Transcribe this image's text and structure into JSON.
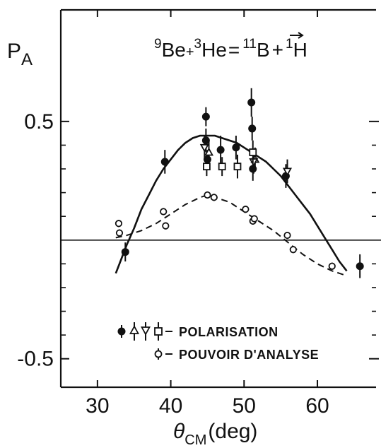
{
  "chart_data": {
    "type": "scatter",
    "title": "",
    "reaction": {
      "target_sup": "9",
      "target": "Be",
      "projectile_sup": "3",
      "projectile": "He",
      "product_sup": "11",
      "product": "B",
      "ejectile_sup": "1",
      "ejectile": "H",
      "plus1": "+",
      "equals": "=",
      "plus2": "+"
    },
    "ylabel": {
      "main": "P",
      "sub": "A"
    },
    "xlabel": {
      "theta": "θ",
      "sub": "CM",
      "unit": "(deg)"
    },
    "xlim": [
      25,
      68
    ],
    "ylim": [
      -0.62,
      0.97
    ],
    "x_ticks": [
      30,
      40,
      50,
      60
    ],
    "x_tick_labels": [
      "30",
      "40",
      "50",
      "60"
    ],
    "y_ticks": [
      -0.5,
      0.5
    ],
    "y_tick_labels": [
      "-0.5",
      "0.5"
    ],
    "y_minor_ticks": [
      -0.4,
      -0.3,
      -0.2,
      -0.1,
      0.1,
      0.2,
      0.3,
      0.4
    ],
    "grid": false,
    "zero_line": true,
    "legend": {
      "position": "bottom-left",
      "polarisation_label": "POLARISATION",
      "analysing_power_label": "POUVOIR D'ANALYSE"
    },
    "series": [
      {
        "group": "polarisation",
        "marker": "filled-circle",
        "x": [
          33.8,
          39.2,
          44.8,
          44.8,
          45.0,
          46.8,
          48.9,
          51.0,
          51.1,
          51.2,
          55.7,
          65.8
        ],
        "y": [
          -0.05,
          0.33,
          0.52,
          0.42,
          0.34,
          0.38,
          0.39,
          0.58,
          0.47,
          0.3,
          0.27,
          -0.11
        ],
        "err": [
          0.04,
          0.05,
          0.04,
          0.05,
          0.04,
          0.06,
          0.05,
          0.06,
          0.05,
          0.05,
          0.05,
          0.05
        ]
      },
      {
        "group": "polarisation",
        "marker": "triangle-up",
        "x": [
          45.2,
          51.5
        ],
        "y": [
          0.37,
          0.34
        ],
        "err": [
          0.05,
          0.05
        ]
      },
      {
        "group": "polarisation",
        "marker": "triangle-down",
        "x": [
          44.6,
          51.3,
          55.9
        ],
        "y": [
          0.39,
          0.33,
          0.29
        ],
        "err": [
          0.05,
          0.05,
          0.05
        ]
      },
      {
        "group": "polarisation",
        "marker": "open-square",
        "x": [
          44.9,
          47.0,
          49.1,
          51.2
        ],
        "y": [
          0.31,
          0.31,
          0.31,
          0.37
        ],
        "err": [
          0.04,
          0.04,
          0.05,
          0.05
        ]
      },
      {
        "group": "analysing_power",
        "marker": "open-circle",
        "x": [
          32.9,
          33.0,
          39.0,
          39.3,
          45.0,
          45.9,
          50.2,
          51.2,
          51.4,
          55.9,
          56.7,
          62.0
        ],
        "y": [
          0.07,
          0.03,
          0.12,
          0.06,
          0.19,
          0.18,
          0.13,
          0.08,
          0.09,
          0.02,
          -0.04,
          -0.11
        ],
        "err": [
          0.015,
          0.015,
          0.015,
          0.015,
          0.015,
          0.015,
          0.015,
          0.015,
          0.015,
          0.015,
          0.015,
          0.015
        ]
      }
    ],
    "fits": [
      {
        "group": "polarisation",
        "style": "solid",
        "x": [
          32.5,
          33,
          34,
          35,
          36,
          37,
          38,
          39,
          40,
          41,
          42,
          43,
          44,
          45,
          46,
          47,
          48,
          49,
          50,
          51,
          52,
          53,
          54,
          55,
          56,
          57,
          58,
          59,
          60,
          61,
          62,
          63,
          64
        ],
        "y": [
          -0.14,
          -0.1,
          -0.02,
          0.05,
          0.13,
          0.19,
          0.25,
          0.3,
          0.34,
          0.38,
          0.41,
          0.43,
          0.44,
          0.44,
          0.44,
          0.43,
          0.42,
          0.41,
          0.39,
          0.37,
          0.35,
          0.33,
          0.3,
          0.27,
          0.23,
          0.19,
          0.15,
          0.11,
          0.06,
          0.01,
          -0.04,
          -0.09,
          -0.13
        ]
      },
      {
        "group": "analysing_power",
        "style": "dashed",
        "x": [
          32.5,
          34,
          36,
          38,
          40,
          42,
          44,
          45,
          46,
          48,
          50,
          52,
          54,
          56,
          58,
          60,
          62,
          64
        ],
        "y": [
          0.01,
          0.02,
          0.04,
          0.07,
          0.11,
          0.15,
          0.18,
          0.19,
          0.18,
          0.16,
          0.12,
          0.08,
          0.04,
          -0.01,
          -0.06,
          -0.1,
          -0.13,
          -0.15
        ]
      }
    ]
  }
}
